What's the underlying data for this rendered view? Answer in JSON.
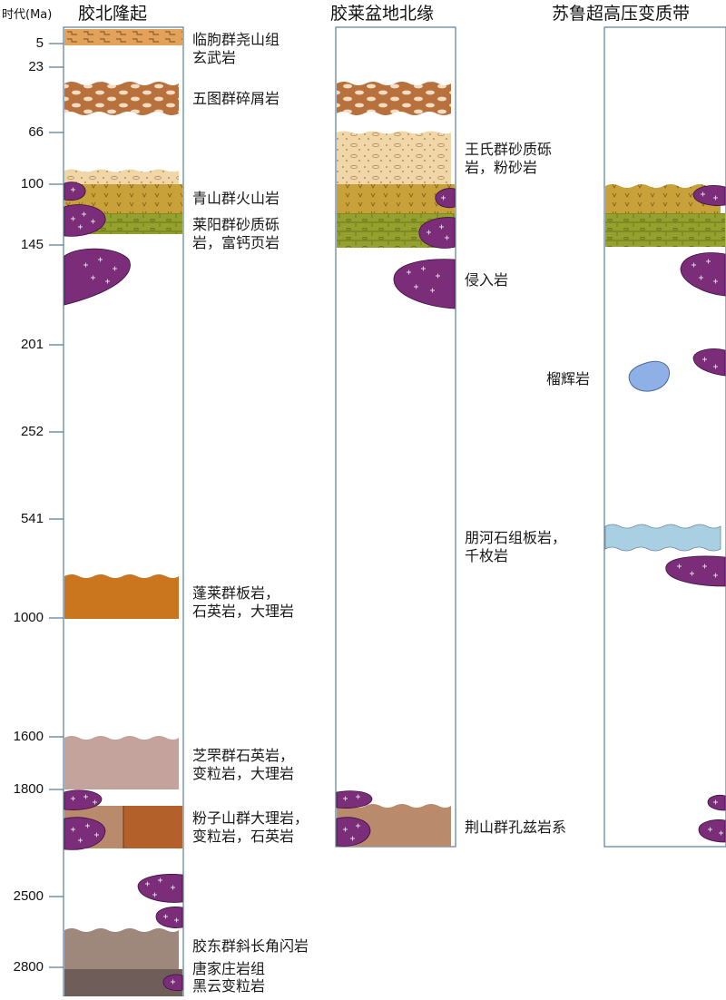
{
  "header": {
    "time_label": "时代(Ma)",
    "col1": "胶北隆起",
    "col2": "胶莱盆地北缘",
    "col3": "苏鲁超高压变质带"
  },
  "ticks": [
    "5",
    "23",
    "66",
    "100",
    "145",
    "201",
    "252",
    "541",
    "1000",
    "1600",
    "1800",
    "2500",
    "2800"
  ],
  "labels": {
    "l1a": "临朐群尧山组",
    "l1b": "玄武岩",
    "l2": "五图群碎屑岩",
    "l3": "青山群火山岩",
    "l4a": "莱阳群砂质砾",
    "l4b": "岩，富钙页岩",
    "l5a": "蓬莱群板岩，",
    "l5b": "石英岩，大理岩",
    "l6a": "芝罘群石英岩，",
    "l6b": "变粒岩，大理岩",
    "l7a": "粉子山群大理岩，",
    "l7b": "变粒岩，石英岩",
    "l8": "胶东群斜长角闪岩",
    "l9a": "唐家庄岩组",
    "l9b": "黑云变粒岩",
    "m1a": "王氏群砂质砾",
    "m1b": "岩，粉砂岩",
    "m2": "侵入岩",
    "m3": "荆山群孔兹岩系",
    "r1": "榴辉岩",
    "r2a": "朋河石组板岩，",
    "r2b": "千枚岩"
  },
  "colors": {
    "column_border": "#5a7d9c",
    "tick_line": "#4f7896",
    "intrusive": "#7b2d7a",
    "eclogite": "#8fb0e6",
    "orange_tan": "#e2a25a",
    "brown": "#b8703c",
    "sand": "#f1d7a8",
    "ochre": "#c8a13a",
    "olive": "#95a12e",
    "rust": "#c9761f",
    "mauve": "#c4a39c",
    "clay": "#ba8a6c",
    "taupe": "#9e877b",
    "dark_taupe": "#6e5d58",
    "light_blue": "#a9cfe3"
  }
}
